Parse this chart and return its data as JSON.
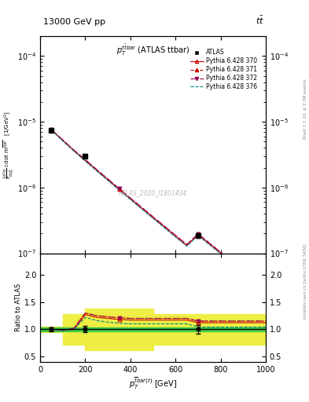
{
  "title_top": "13000 GeV pp",
  "title_top_right": "tt",
  "plot_title": "$p_T^{\\ttbar}$ (ATLAS ttbar)",
  "watermark": "ATLAS_2020_I1801434",
  "right_label_top": "Rivet 3.1.10, ≥ 2.5M events",
  "right_label_bottom": "mcplots.cern.ch [arXiv:1306.3436]",
  "ylabel_ratio": "Ratio to ATLAS",
  "xlim": [
    0,
    1000
  ],
  "ylim_main": [
    1e-07,
    0.0002
  ],
  "ylim_ratio": [
    0.4,
    2.4
  ],
  "ratio_yticks": [
    0.5,
    1.0,
    1.5,
    2.0
  ],
  "data_x": [
    50,
    200,
    700
  ],
  "data_y": [
    7.5e-06,
    3e-06,
    1.85e-07
  ],
  "data_yerr": [
    3e-07,
    2e-07,
    1.2e-08
  ],
  "py_x": [
    50,
    100,
    150,
    200,
    250,
    300,
    350,
    400,
    450,
    500,
    550,
    600,
    650,
    700,
    750,
    800,
    850,
    900,
    950,
    1000
  ],
  "py370_y": [
    7.5e-06,
    5.2e-06,
    3.6e-06,
    2.55e-06,
    1.82e-06,
    1.3e-06,
    9.3e-07,
    6.7e-07,
    4.8e-07,
    3.45e-07,
    2.5e-07,
    1.8e-07,
    1.3e-07,
    1.9e-07,
    1.38e-07,
    1e-07,
    7.2e-08,
    5.2e-08,
    3.8e-08,
    2.7e-08
  ],
  "py371_y": [
    7.6e-06,
    5.3e-06,
    3.7e-06,
    2.65e-06,
    1.88e-06,
    1.35e-06,
    9.6e-07,
    6.9e-07,
    5e-07,
    3.6e-07,
    2.6e-07,
    1.88e-07,
    1.36e-07,
    1.97e-07,
    1.43e-07,
    1.04e-07,
    7.5e-08,
    5.4e-08,
    3.9e-08,
    2.8e-08
  ],
  "py372_y": [
    7.6e-06,
    5.3e-06,
    3.7e-06,
    2.65e-06,
    1.88e-06,
    1.35e-06,
    9.6e-07,
    6.9e-07,
    5e-07,
    3.6e-07,
    2.6e-07,
    1.88e-07,
    1.36e-07,
    1.97e-07,
    1.43e-07,
    1.04e-07,
    7.5e-08,
    5.4e-08,
    3.9e-08,
    2.8e-08
  ],
  "py376_y": [
    7.4e-06,
    5.1e-06,
    3.55e-06,
    2.52e-06,
    1.79e-06,
    1.28e-06,
    9.1e-07,
    6.55e-07,
    4.72e-07,
    3.4e-07,
    2.45e-07,
    1.77e-07,
    1.28e-07,
    1.86e-07,
    1.35e-07,
    9.8e-08,
    7.1e-08,
    5.1e-08,
    3.7e-08,
    2.65e-08
  ],
  "r370": [
    1.0,
    0.98,
    1.0,
    1.27,
    1.22,
    1.2,
    1.18,
    1.17,
    1.17,
    1.17,
    1.17,
    1.17,
    1.17,
    1.12,
    1.12,
    1.12,
    1.12,
    1.12,
    1.12,
    1.12
  ],
  "r371": [
    1.0,
    0.98,
    1.02,
    1.3,
    1.25,
    1.23,
    1.21,
    1.2,
    1.2,
    1.2,
    1.2,
    1.2,
    1.2,
    1.15,
    1.15,
    1.15,
    1.15,
    1.15,
    1.15,
    1.15
  ],
  "r372": [
    1.0,
    0.98,
    1.02,
    1.3,
    1.25,
    1.23,
    1.21,
    1.2,
    1.2,
    1.2,
    1.2,
    1.2,
    1.2,
    1.15,
    1.15,
    1.15,
    1.15,
    1.15,
    1.15,
    1.15
  ],
  "r376": [
    0.99,
    0.97,
    1.0,
    1.22,
    1.16,
    1.13,
    1.11,
    1.1,
    1.1,
    1.1,
    1.1,
    1.1,
    1.1,
    1.04,
    1.04,
    1.04,
    1.04,
    1.04,
    1.04,
    1.04
  ],
  "ratio_data_x": [
    50,
    200,
    700
  ],
  "ratio_data_y": [
    1.0,
    1.0,
    1.0
  ],
  "ratio_data_err": [
    0.04,
    0.06,
    0.08
  ],
  "band_edges": [
    0,
    100,
    200,
    500,
    1000
  ],
  "green_lo": [
    0.96,
    0.96,
    0.96,
    0.96,
    0.96
  ],
  "green_hi": [
    1.04,
    1.04,
    1.04,
    1.04,
    1.04
  ],
  "yellow_lo": [
    0.95,
    0.72,
    0.62,
    0.72,
    0.72
  ],
  "yellow_hi": [
    1.05,
    1.28,
    1.38,
    1.28,
    1.28
  ],
  "color_atlas": "#000000",
  "color_370": "#cc0000",
  "color_371": "#cc0000",
  "color_372": "#990055",
  "color_376": "#008888",
  "color_green": "#44cc44",
  "color_yellow": "#eeee44",
  "bg": "#ffffff"
}
